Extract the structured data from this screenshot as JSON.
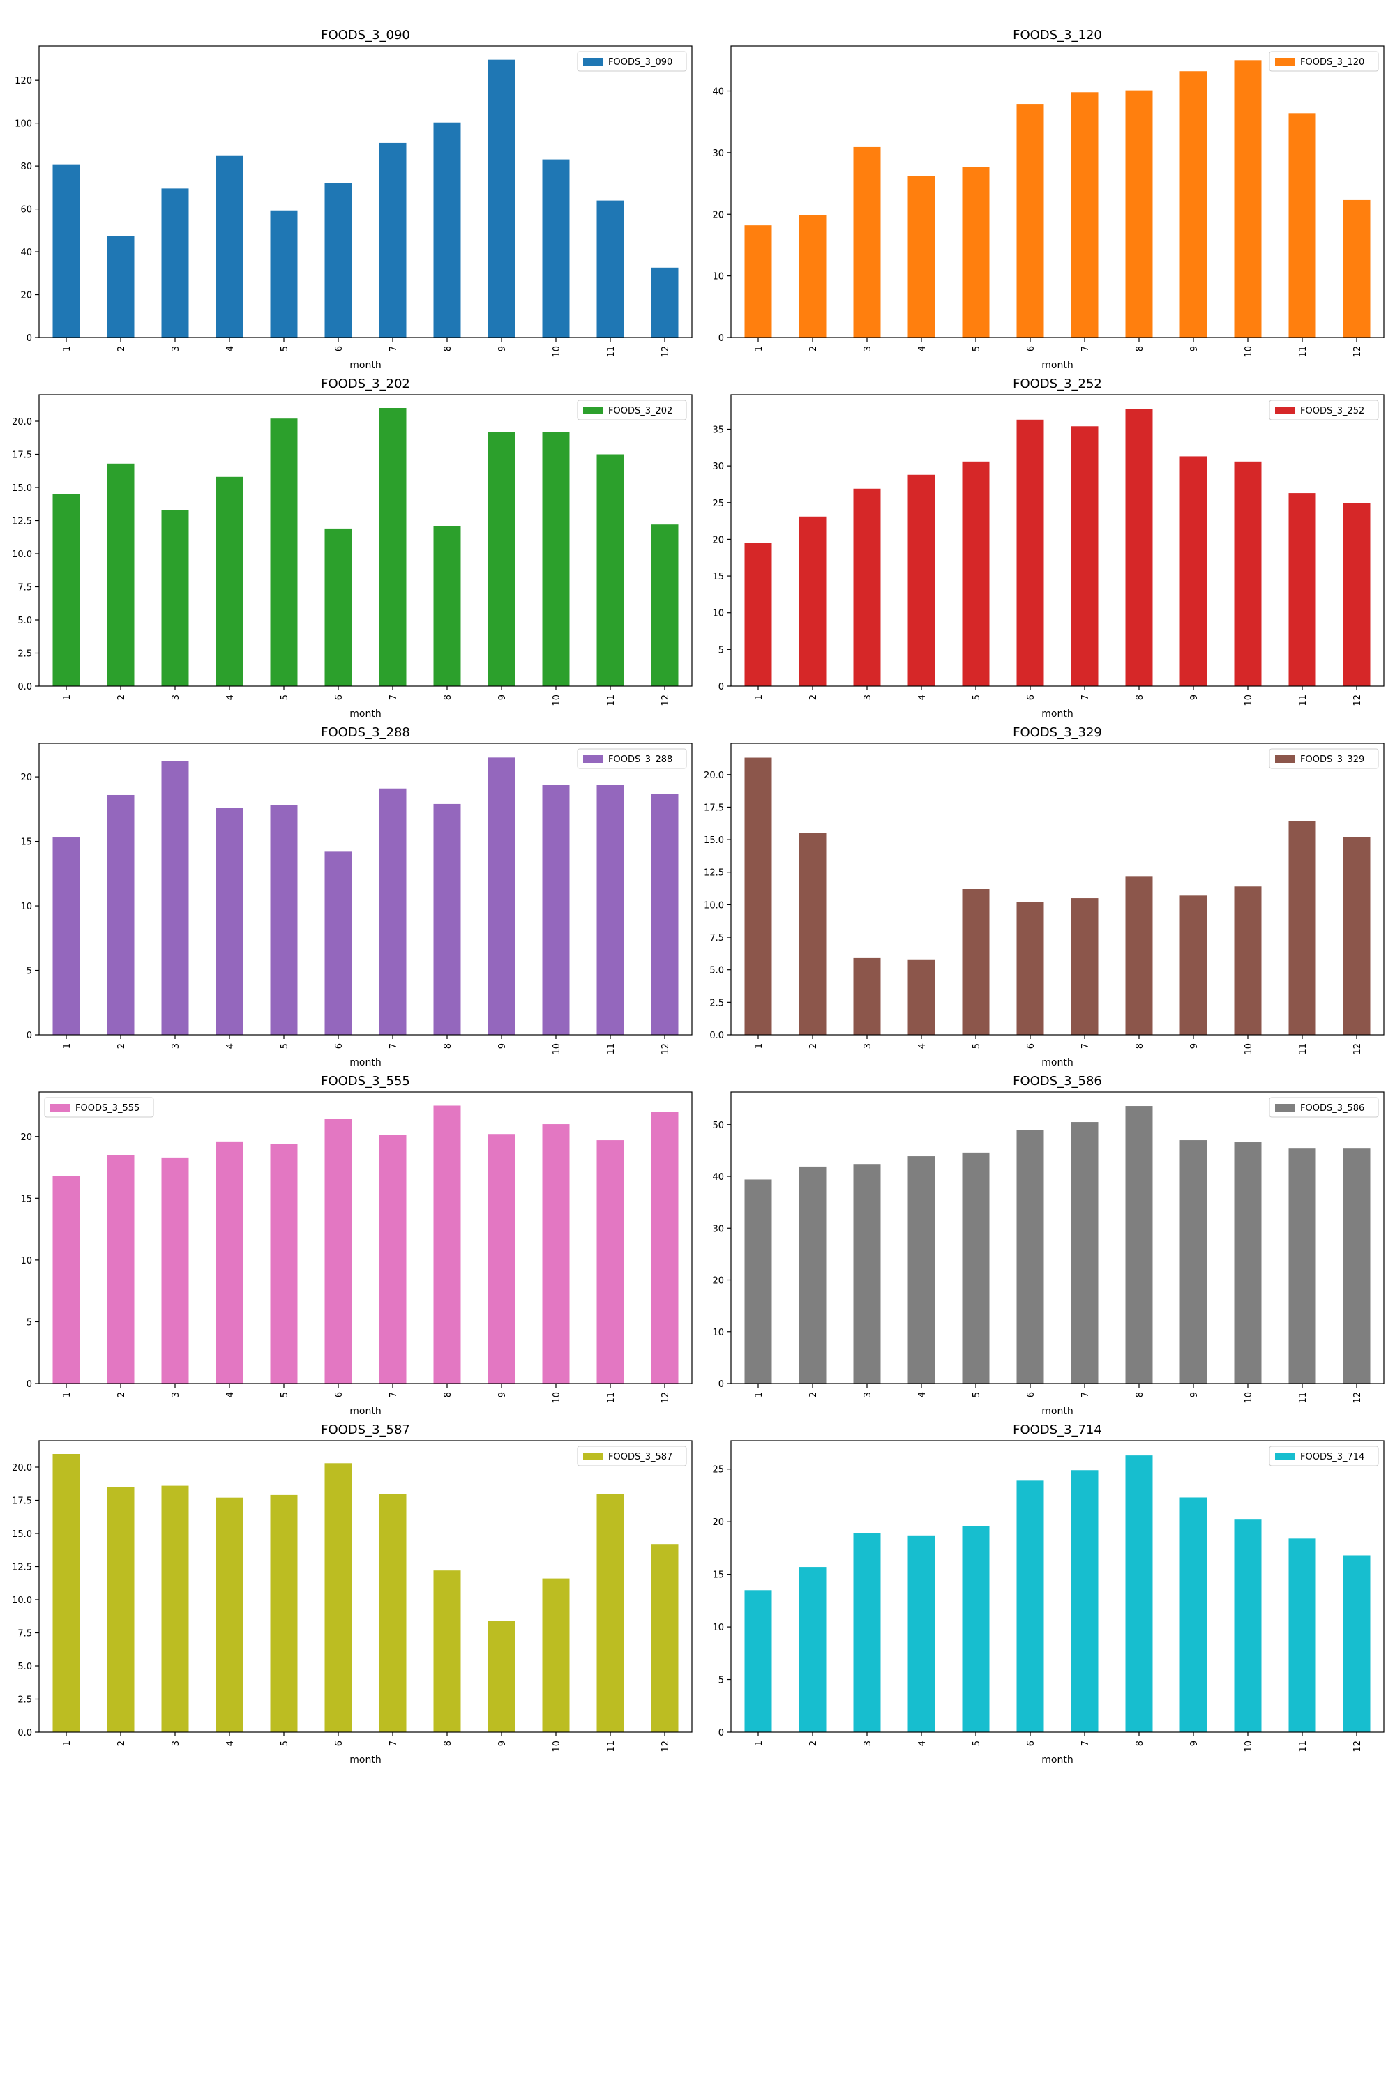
{
  "chart_data": [
    {
      "type": "bar",
      "title": "FOODS_3_090",
      "xlabel": "month",
      "ylabel": "",
      "categories": [
        "1",
        "2",
        "3",
        "4",
        "5",
        "6",
        "7",
        "8",
        "9",
        "10",
        "11",
        "12"
      ],
      "series": [
        {
          "name": "FOODS_3_090",
          "values": [
            80.8,
            47.2,
            69.5,
            85.0,
            59.3,
            72.1,
            90.8,
            100.3,
            129.6,
            83.1,
            63.9,
            32.6
          ]
        }
      ],
      "ylim": [
        0,
        136
      ],
      "yticks": [
        0,
        20,
        40,
        60,
        80,
        100,
        120
      ],
      "ytick_labels": [
        "0",
        "20",
        "40",
        "60",
        "80",
        "100",
        "120"
      ],
      "color": "#1f77b4",
      "legend_position": "top-right",
      "grid": false
    },
    {
      "type": "bar",
      "title": "FOODS_3_120",
      "xlabel": "month",
      "ylabel": "",
      "categories": [
        "1",
        "2",
        "3",
        "4",
        "5",
        "6",
        "7",
        "8",
        "9",
        "10",
        "11",
        "12"
      ],
      "series": [
        {
          "name": "FOODS_3_120",
          "values": [
            18.2,
            19.9,
            30.9,
            26.2,
            27.7,
            37.9,
            39.8,
            40.1,
            43.2,
            45.0,
            36.4,
            22.3
          ]
        }
      ],
      "ylim": [
        0,
        47.3
      ],
      "yticks": [
        0,
        10,
        20,
        30,
        40
      ],
      "ytick_labels": [
        "0",
        "10",
        "20",
        "30",
        "40"
      ],
      "color": "#ff7f0e",
      "legend_position": "top-right",
      "grid": false
    },
    {
      "type": "bar",
      "title": "FOODS_3_202",
      "xlabel": "month",
      "ylabel": "",
      "categories": [
        "1",
        "2",
        "3",
        "4",
        "5",
        "6",
        "7",
        "8",
        "9",
        "10",
        "11",
        "12"
      ],
      "series": [
        {
          "name": "FOODS_3_202",
          "values": [
            14.5,
            16.8,
            13.3,
            15.8,
            20.2,
            11.9,
            21.0,
            12.1,
            19.2,
            19.2,
            17.5,
            12.2
          ]
        }
      ],
      "ylim": [
        0,
        22.0
      ],
      "yticks": [
        0,
        2.5,
        5,
        7.5,
        10,
        12.5,
        15,
        17.5,
        20
      ],
      "ytick_labels": [
        "0.0",
        "2.5",
        "5.0",
        "7.5",
        "10.0",
        "12.5",
        "15.0",
        "17.5",
        "20.0"
      ],
      "color": "#2ca02c",
      "legend_position": "top-right",
      "grid": false
    },
    {
      "type": "bar",
      "title": "FOODS_3_252",
      "xlabel": "month",
      "ylabel": "",
      "categories": [
        "1",
        "2",
        "3",
        "4",
        "5",
        "6",
        "7",
        "8",
        "9",
        "10",
        "11",
        "12"
      ],
      "series": [
        {
          "name": "FOODS_3_252",
          "values": [
            19.5,
            23.1,
            26.9,
            28.8,
            30.6,
            36.3,
            35.4,
            37.8,
            31.3,
            30.6,
            26.3,
            24.9
          ]
        }
      ],
      "ylim": [
        0,
        39.7
      ],
      "yticks": [
        0,
        5,
        10,
        15,
        20,
        25,
        30,
        35
      ],
      "ytick_labels": [
        "0",
        "5",
        "10",
        "15",
        "20",
        "25",
        "30",
        "35"
      ],
      "color": "#d62728",
      "legend_position": "top-right",
      "grid": false
    },
    {
      "type": "bar",
      "title": "FOODS_3_288",
      "xlabel": "month",
      "ylabel": "",
      "categories": [
        "1",
        "2",
        "3",
        "4",
        "5",
        "6",
        "7",
        "8",
        "9",
        "10",
        "11",
        "12"
      ],
      "series": [
        {
          "name": "FOODS_3_288",
          "values": [
            15.3,
            18.6,
            21.2,
            17.6,
            17.8,
            14.2,
            19.1,
            17.9,
            21.5,
            19.4,
            19.4,
            18.7
          ]
        }
      ],
      "ylim": [
        0,
        22.6
      ],
      "yticks": [
        0,
        5,
        10,
        15,
        20
      ],
      "ytick_labels": [
        "0",
        "5",
        "10",
        "15",
        "20"
      ],
      "color": "#9467bd",
      "legend_position": "top-right",
      "grid": false
    },
    {
      "type": "bar",
      "title": "FOODS_3_329",
      "xlabel": "month",
      "ylabel": "",
      "categories": [
        "1",
        "2",
        "3",
        "4",
        "5",
        "6",
        "7",
        "8",
        "9",
        "10",
        "11",
        "12"
      ],
      "series": [
        {
          "name": "FOODS_3_329",
          "values": [
            21.3,
            15.5,
            5.9,
            5.8,
            11.2,
            10.2,
            10.5,
            12.2,
            10.7,
            11.4,
            16.4,
            15.2
          ]
        }
      ],
      "ylim": [
        0,
        22.4
      ],
      "yticks": [
        0,
        2.5,
        5,
        7.5,
        10,
        12.5,
        15,
        17.5,
        20
      ],
      "ytick_labels": [
        "0.0",
        "2.5",
        "5.0",
        "7.5",
        "10.0",
        "12.5",
        "15.0",
        "17.5",
        "20.0"
      ],
      "color": "#8c564b",
      "legend_position": "top-right",
      "grid": false
    },
    {
      "type": "bar",
      "title": "FOODS_3_555",
      "xlabel": "month",
      "ylabel": "",
      "categories": [
        "1",
        "2",
        "3",
        "4",
        "5",
        "6",
        "7",
        "8",
        "9",
        "10",
        "11",
        "12"
      ],
      "series": [
        {
          "name": "FOODS_3_555",
          "values": [
            16.8,
            18.5,
            18.3,
            19.6,
            19.4,
            21.4,
            20.1,
            22.5,
            20.2,
            21.0,
            19.7,
            22.0
          ]
        }
      ],
      "ylim": [
        0,
        23.6
      ],
      "yticks": [
        0,
        5,
        10,
        15,
        20
      ],
      "ytick_labels": [
        "0",
        "5",
        "10",
        "15",
        "20"
      ],
      "color": "#e377c2",
      "legend_position": "top-left",
      "grid": false
    },
    {
      "type": "bar",
      "title": "FOODS_3_586",
      "xlabel": "month",
      "ylabel": "",
      "categories": [
        "1",
        "2",
        "3",
        "4",
        "5",
        "6",
        "7",
        "8",
        "9",
        "10",
        "11",
        "12"
      ],
      "series": [
        {
          "name": "FOODS_3_586",
          "values": [
            39.4,
            41.9,
            42.4,
            43.9,
            44.6,
            48.9,
            50.5,
            53.6,
            47.0,
            46.6,
            45.5,
            45.5
          ]
        }
      ],
      "ylim": [
        0,
        56.3
      ],
      "yticks": [
        0,
        10,
        20,
        30,
        40,
        50
      ],
      "ytick_labels": [
        "0",
        "10",
        "20",
        "30",
        "40",
        "50"
      ],
      "color": "#7f7f7f",
      "legend_position": "top-right",
      "grid": false
    },
    {
      "type": "bar",
      "title": "FOODS_3_587",
      "xlabel": "month",
      "ylabel": "",
      "categories": [
        "1",
        "2",
        "3",
        "4",
        "5",
        "6",
        "7",
        "8",
        "9",
        "10",
        "11",
        "12"
      ],
      "series": [
        {
          "name": "FOODS_3_587",
          "values": [
            21.0,
            18.5,
            18.6,
            17.7,
            17.9,
            20.3,
            18.0,
            12.2,
            8.4,
            11.6,
            18.0,
            14.2
          ]
        }
      ],
      "ylim": [
        0,
        22.0
      ],
      "yticks": [
        0,
        2.5,
        5,
        7.5,
        10,
        12.5,
        15,
        17.5,
        20
      ],
      "ytick_labels": [
        "0.0",
        "2.5",
        "5.0",
        "7.5",
        "10.0",
        "12.5",
        "15.0",
        "17.5",
        "20.0"
      ],
      "color": "#bcbd22",
      "legend_position": "top-right",
      "grid": false
    },
    {
      "type": "bar",
      "title": "FOODS_3_714",
      "xlabel": "month",
      "ylabel": "",
      "categories": [
        "1",
        "2",
        "3",
        "4",
        "5",
        "6",
        "7",
        "8",
        "9",
        "10",
        "11",
        "12"
      ],
      "series": [
        {
          "name": "FOODS_3_714",
          "values": [
            13.5,
            15.7,
            18.9,
            18.7,
            19.6,
            23.9,
            24.9,
            26.3,
            22.3,
            20.2,
            18.4,
            16.8
          ]
        }
      ],
      "ylim": [
        0,
        27.7
      ],
      "yticks": [
        0,
        5,
        10,
        15,
        20,
        25
      ],
      "ytick_labels": [
        "0",
        "5",
        "10",
        "15",
        "20",
        "25"
      ],
      "color": "#17becf",
      "legend_position": "top-right",
      "grid": false
    }
  ]
}
